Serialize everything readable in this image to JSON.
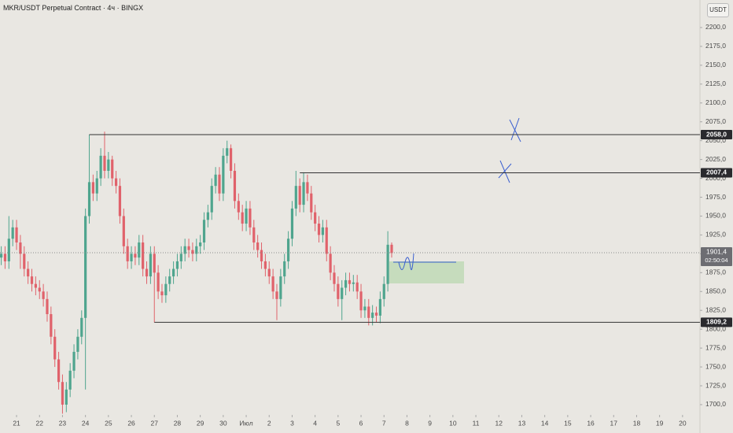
{
  "chart_data": {
    "type": "candlestick",
    "title": "MKR/USDT Perpetual Contract · 4ч · BINGX",
    "unit_button": "USDT",
    "up_color": "#4fa58e",
    "down_color": "#e0626b",
    "xlim": [
      -17.3,
      714.2
    ],
    "ylim": [
      1686.4,
      2236.5
    ],
    "xticks": [
      {
        "value": 0,
        "label": "21"
      },
      {
        "value": 24,
        "label": "22"
      },
      {
        "value": 48,
        "label": "23"
      },
      {
        "value": 72,
        "label": "24"
      },
      {
        "value": 96,
        "label": "25"
      },
      {
        "value": 120,
        "label": "26"
      },
      {
        "value": 144,
        "label": "27"
      },
      {
        "value": 168,
        "label": "28"
      },
      {
        "value": 192,
        "label": "29"
      },
      {
        "value": 216,
        "label": "30"
      },
      {
        "value": 240,
        "label": "Июл"
      },
      {
        "value": 264,
        "label": "2"
      },
      {
        "value": 288,
        "label": "3"
      },
      {
        "value": 312,
        "label": "4"
      },
      {
        "value": 336,
        "label": "5"
      },
      {
        "value": 360,
        "label": "6"
      },
      {
        "value": 384,
        "label": "7"
      },
      {
        "value": 408,
        "label": "8"
      },
      {
        "value": 432,
        "label": "9"
      },
      {
        "value": 456,
        "label": "10"
      },
      {
        "value": 480,
        "label": "11"
      },
      {
        "value": 504,
        "label": "12"
      },
      {
        "value": 528,
        "label": "13"
      },
      {
        "value": 552,
        "label": "14"
      },
      {
        "value": 576,
        "label": "15"
      },
      {
        "value": 600,
        "label": "16"
      },
      {
        "value": 624,
        "label": "17"
      },
      {
        "value": 648,
        "label": "18"
      },
      {
        "value": 672,
        "label": "19"
      },
      {
        "value": 696,
        "label": "20"
      }
    ],
    "yticks": [
      {
        "value": 1700,
        "label": "1700,0"
      },
      {
        "value": 1725,
        "label": "1725,0"
      },
      {
        "value": 1750,
        "label": "1750,0"
      },
      {
        "value": 1775,
        "label": "1775,0"
      },
      {
        "value": 1800,
        "label": "1800,0"
      },
      {
        "value": 1825,
        "label": "1825,0"
      },
      {
        "value": 1850,
        "label": "1850,0"
      },
      {
        "value": 1875,
        "label": "1875,0"
      },
      {
        "value": 1900,
        "label": "1900,0"
      },
      {
        "value": 1925,
        "label": "1925,0"
      },
      {
        "value": 1950,
        "label": "1950,0"
      },
      {
        "value": 1975,
        "label": "1975,0"
      },
      {
        "value": 2000,
        "label": "2000,0"
      },
      {
        "value": 2025,
        "label": "2025,0"
      },
      {
        "value": 2050,
        "label": "2050,0"
      },
      {
        "value": 2075,
        "label": "2075,0"
      },
      {
        "value": 2100,
        "label": "2100,0"
      },
      {
        "value": 2125,
        "label": "2125,0"
      },
      {
        "value": 2150,
        "label": "2150,0"
      },
      {
        "value": 2175,
        "label": "2175,0"
      },
      {
        "value": 2200,
        "label": "2200,0"
      }
    ],
    "x": [
      -16,
      -12,
      -8,
      -4,
      0,
      4,
      8,
      12,
      16,
      20,
      24,
      28,
      32,
      36,
      40,
      44,
      48,
      52,
      56,
      60,
      64,
      68,
      72,
      76,
      80,
      84,
      88,
      92,
      96,
      100,
      104,
      108,
      112,
      116,
      120,
      124,
      128,
      132,
      136,
      140,
      144,
      148,
      152,
      156,
      160,
      164,
      168,
      172,
      176,
      180,
      184,
      188,
      192,
      196,
      200,
      204,
      208,
      212,
      216,
      220,
      224,
      228,
      232,
      236,
      240,
      244,
      248,
      252,
      256,
      260,
      264,
      268,
      272,
      276,
      280,
      284,
      288,
      292,
      296,
      300,
      304,
      308,
      312,
      316,
      320,
      324,
      328,
      332,
      336,
      340,
      344,
      348,
      352,
      356,
      360,
      364,
      368,
      372,
      376,
      380,
      384,
      388,
      392
    ],
    "open": [
      1895,
      1900,
      1890,
      1920,
      1935,
      1915,
      1900,
      1880,
      1870,
      1860,
      1855,
      1850,
      1840,
      1820,
      1790,
      1760,
      1730,
      1700,
      1720,
      1745,
      1770,
      1790,
      1815,
      1950,
      1995,
      1980,
      2000,
      2030,
      2010,
      2025,
      2000,
      1990,
      1950,
      1910,
      1890,
      1900,
      1895,
      1915,
      1880,
      1870,
      1900,
      1875,
      1850,
      1845,
      1860,
      1870,
      1880,
      1890,
      1900,
      1910,
      1905,
      1900,
      1910,
      1915,
      1945,
      1955,
      1990,
      2005,
      1980,
      2030,
      2040,
      2010,
      1970,
      1955,
      1940,
      1960,
      1935,
      1915,
      1905,
      1890,
      1880,
      1870,
      1850,
      1840,
      1870,
      1890,
      1920,
      1960,
      1990,
      1965,
      1995,
      1980,
      1955,
      1940,
      1925,
      1935,
      1900,
      1875,
      1860,
      1840,
      1855,
      1865,
      1860,
      1862,
      1850,
      1825,
      1830,
      1815,
      1822,
      1818,
      1840,
      1860,
      1912
    ],
    "high": [
      1910,
      1910,
      1950,
      1945,
      1945,
      1925,
      1910,
      1890,
      1880,
      1870,
      1865,
      1860,
      1850,
      1830,
      1800,
      1770,
      1740,
      1730,
      1755,
      1780,
      1800,
      1825,
      1960,
      2058,
      2005,
      2010,
      2040,
      2062,
      2035,
      2030,
      2010,
      2000,
      1960,
      1920,
      1910,
      1910,
      1925,
      1925,
      1890,
      1910,
      1910,
      1885,
      1860,
      1870,
      1880,
      1890,
      1900,
      1910,
      1920,
      1920,
      1915,
      1920,
      1925,
      1955,
      1965,
      2000,
      2015,
      2015,
      2040,
      2050,
      2045,
      2020,
      1980,
      1965,
      1970,
      1970,
      1945,
      1925,
      1915,
      1900,
      1890,
      1880,
      1860,
      1880,
      1900,
      1930,
      1970,
      2010,
      2000,
      2008,
      2005,
      1990,
      1965,
      1950,
      1945,
      1945,
      1910,
      1885,
      1870,
      1865,
      1875,
      1875,
      1872,
      1872,
      1860,
      1840,
      1840,
      1832,
      1830,
      1850,
      1870,
      1930,
      1915
    ],
    "low": [
      1885,
      1880,
      1880,
      1910,
      1905,
      1880,
      1870,
      1860,
      1850,
      1845,
      1840,
      1830,
      1810,
      1780,
      1750,
      1720,
      1688,
      1690,
      1710,
      1735,
      1760,
      1780,
      1720,
      1940,
      1970,
      1970,
      1990,
      2000,
      2000,
      1990,
      1980,
      1940,
      1900,
      1880,
      1880,
      1885,
      1885,
      1870,
      1860,
      1860,
      1809,
      1840,
      1835,
      1835,
      1850,
      1860,
      1870,
      1880,
      1890,
      1895,
      1890,
      1890,
      1900,
      1905,
      1935,
      1945,
      1980,
      1970,
      1970,
      2020,
      2000,
      1960,
      1945,
      1930,
      1930,
      1925,
      1905,
      1895,
      1880,
      1870,
      1860,
      1840,
      1812,
      1830,
      1860,
      1880,
      1910,
      1950,
      1955,
      1955,
      1970,
      1945,
      1930,
      1915,
      1915,
      1890,
      1865,
      1850,
      1830,
      1812,
      1845,
      1850,
      1850,
      1840,
      1815,
      1815,
      1805,
      1805,
      1809,
      1808,
      1830,
      1850,
      1895
    ],
    "close": [
      1900,
      1890,
      1920,
      1935,
      1915,
      1900,
      1880,
      1870,
      1860,
      1855,
      1850,
      1840,
      1820,
      1790,
      1760,
      1730,
      1700,
      1720,
      1745,
      1770,
      1790,
      1815,
      1950,
      1995,
      1980,
      2000,
      2030,
      2010,
      2025,
      2000,
      1990,
      1950,
      1910,
      1890,
      1900,
      1895,
      1915,
      1880,
      1870,
      1900,
      1875,
      1850,
      1845,
      1860,
      1870,
      1880,
      1890,
      1900,
      1910,
      1905,
      1900,
      1910,
      1915,
      1945,
      1955,
      1990,
      2005,
      1980,
      2030,
      2040,
      2010,
      1970,
      1955,
      1940,
      1960,
      1935,
      1915,
      1905,
      1890,
      1880,
      1870,
      1850,
      1840,
      1870,
      1890,
      1920,
      1960,
      1990,
      1965,
      1995,
      1980,
      1955,
      1940,
      1925,
      1935,
      1900,
      1875,
      1860,
      1840,
      1855,
      1865,
      1860,
      1862,
      1850,
      1825,
      1830,
      1815,
      1822,
      1818,
      1840,
      1860,
      1912,
      1901
    ],
    "levels": [
      {
        "value": 2058.0,
        "label": "2058,0",
        "x_start": 76
      },
      {
        "value": 2007.4,
        "label": "2007,4",
        "x_start": 296
      },
      {
        "value": 1809.2,
        "label": "1809,2",
        "x_start": 144
      }
    ],
    "last_price": {
      "value": 1901.4,
      "label": "1901,4",
      "countdown": "02:50:04"
    }
  }
}
